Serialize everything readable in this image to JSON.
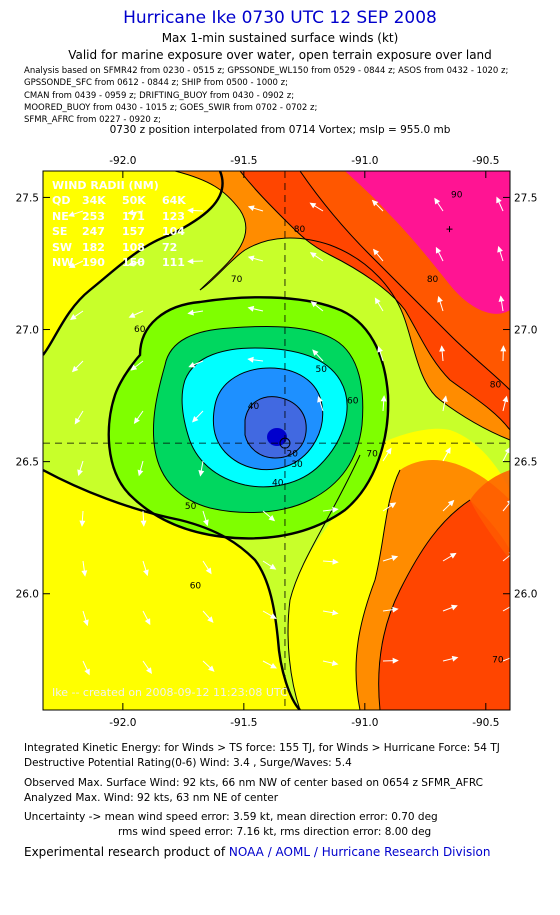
{
  "header": {
    "title": "Hurricane Ike 0730 UTC 12 SEP 2008",
    "subtitle": "Max 1-min sustained surface winds (kt)",
    "validity": "Valid for marine exposure over water, open terrain exposure over land",
    "analysis_lines": [
      "Analysis based on   SFMR42 from 0230 - 0515 z;  GPSSONDE_WL150 from 0529 - 0844 z;  ASOS from 0432 - 1020 z;",
      "GPSSONDE_SFC from 0612 - 0844 z;   SHIP from 0500 - 1000 z;",
      "CMAN from 0439 - 0959 z;  DRIFTING_BUOY from 0430 - 0902 z;",
      "MOORED_BUOY from 0430 - 1015 z;  GOES_SWIR from 0702 - 0702 z;",
      "SFMR_AFRC from 0227 - 0920 z;"
    ],
    "position_note": "0730 z position interpolated from 0714 Vortex; mslp = 955.0 mb"
  },
  "chart_data": {
    "type": "contour",
    "x_ticks": [
      "-92.0",
      "-91.5",
      "-91.0",
      "-90.5"
    ],
    "y_ticks": [
      "27.5",
      "27.0",
      "26.5",
      "26.0"
    ],
    "x_tick_values": [
      -92.0,
      -91.5,
      -91.0,
      -90.5
    ],
    "y_tick_values": [
      27.5,
      27.0,
      26.5,
      26.0
    ],
    "xlim": [
      -92.33,
      -90.4
    ],
    "ylim": [
      25.56,
      27.6
    ],
    "center": {
      "lon": -91.33,
      "lat": 26.57
    },
    "max_wind_location": {
      "lon": -90.65,
      "lat": 27.38
    },
    "contour_levels": [
      20,
      30,
      40,
      50,
      60,
      70,
      80,
      90
    ],
    "contour_labels": [
      {
        "text": "20",
        "lon": -91.3,
        "lat": 26.52
      },
      {
        "text": "30",
        "lon": -91.28,
        "lat": 26.48
      },
      {
        "text": "40",
        "lon": -91.46,
        "lat": 26.7
      },
      {
        "text": "40",
        "lon": -91.36,
        "lat": 26.41
      },
      {
        "text": "50",
        "lon": -91.18,
        "lat": 26.84
      },
      {
        "text": "50",
        "lon": -91.72,
        "lat": 26.32
      },
      {
        "text": "60",
        "lon": -91.93,
        "lat": 26.99
      },
      {
        "text": "60",
        "lon": -91.05,
        "lat": 26.72
      },
      {
        "text": "60",
        "lon": -91.7,
        "lat": 26.02
      },
      {
        "text": "70",
        "lon": -91.53,
        "lat": 27.18
      },
      {
        "text": "70",
        "lon": -90.97,
        "lat": 26.52
      },
      {
        "text": "70",
        "lon": -90.45,
        "lat": 25.74
      },
      {
        "text": "80",
        "lon": -91.27,
        "lat": 27.37
      },
      {
        "text": "80",
        "lon": -90.72,
        "lat": 27.18
      },
      {
        "text": "80",
        "lon": -90.46,
        "lat": 26.78
      },
      {
        "text": "90",
        "lon": -90.62,
        "lat": 27.5
      }
    ],
    "wind_radii": {
      "title": "WIND RADII (NM)",
      "columns": [
        "QD",
        "34K",
        "50K",
        "64K"
      ],
      "rows": [
        [
          "NE",
          "253",
          "171",
          "123"
        ],
        [
          "SE",
          "247",
          "157",
          "104"
        ],
        [
          "SW",
          "182",
          "108",
          "72"
        ],
        [
          "NW",
          "190",
          "150",
          "111"
        ]
      ]
    },
    "watermark": "Ike -- created on 2008-09-12 11:23:08 UTC",
    "colors": {
      "c90": "#ff1493",
      "c80": "#ff4500",
      "c70": "#ff8c00",
      "c60": "#ffff00",
      "c50": "#7fff00",
      "c40": "#00d75f",
      "c30": "#00ffff",
      "c20": "#1e90ff",
      "core": "#0000cd",
      "low": "#c8ff2a"
    }
  },
  "stats": {
    "ike": "Integrated Kinetic Energy:  for Winds > TS force: 155 TJ,  for Winds > Hurricane Force: 54 TJ",
    "dpr": "Destructive Potential Rating(0-6)   Wind: 3.4 , Surge/Waves: 5.4",
    "observed": "Observed Max. Surface Wind: 92 kts, 66 nm NW of center based on 0654 z SFMR_AFRC",
    "analyzed": "Analyzed Max. Wind: 92 kts, 63 nm NE of center",
    "uncertainty1": "Uncertainty -> mean wind speed error: 3.59 kt,   mean direction error: 0.70 deg",
    "uncertainty2": "rms wind speed error: 7.16 kt,   rms direction error: 8.00 deg"
  },
  "credit": {
    "prefix": "Experimental research product of ",
    "org": "NOAA / AOML / Hurricane Research Division"
  }
}
